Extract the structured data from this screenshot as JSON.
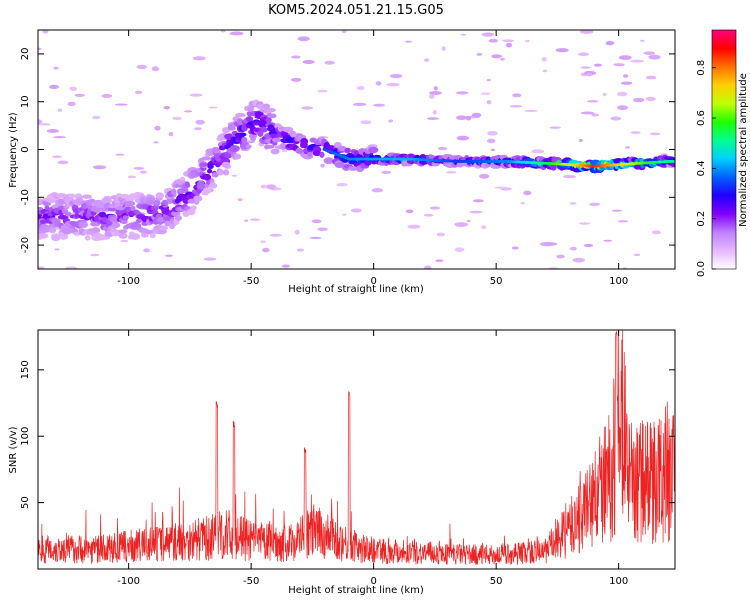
{
  "title": "KOM5.2024.051.21.15.G05",
  "chart_data": [
    {
      "type": "heatmap",
      "xlabel": "Height of straight line (km)",
      "ylabel": "Frequency (Hz)",
      "xlim": [
        -137,
        123
      ],
      "ylim": [
        -25,
        25
      ],
      "xticks": [
        -100,
        -50,
        0,
        50,
        100
      ],
      "yticks": [
        -20,
        -10,
        0,
        10,
        20
      ],
      "colorbar": {
        "label": "Normalized spectral amplitude",
        "range": [
          0,
          0.95
        ],
        "ticks": [
          0.0,
          0.2,
          0.4,
          0.6,
          0.8
        ],
        "tick_labels": [
          "0.0",
          "0.2",
          "0.4",
          "0.6",
          "0.8"
        ],
        "colormap": [
          "#ffffff",
          "#e6b8ff",
          "#c080ff",
          "#8000ff",
          "#2000ff",
          "#0060ff",
          "#00d0ff",
          "#00ff90",
          "#20ff00",
          "#c0ff00",
          "#ffd000",
          "#ff7000",
          "#ff0000",
          "#ff0080"
        ]
      },
      "ridge": [
        {
          "x": -95,
          "y": -14,
          "amp": 0.22
        },
        {
          "x": -85,
          "y": -13,
          "amp": 0.24
        },
        {
          "x": -75,
          "y": -9,
          "amp": 0.25
        },
        {
          "x": -65,
          "y": -3,
          "amp": 0.25
        },
        {
          "x": -55,
          "y": 3,
          "amp": 0.27
        },
        {
          "x": -47,
          "y": 6,
          "amp": 0.28
        },
        {
          "x": -40,
          "y": 3,
          "amp": 0.27
        },
        {
          "x": -30,
          "y": 1,
          "amp": 0.3
        },
        {
          "x": -20,
          "y": 0,
          "amp": 0.32
        },
        {
          "x": -10,
          "y": -2,
          "amp": 0.35
        },
        {
          "x": 0,
          "y": -2,
          "amp": 0.37
        },
        {
          "x": 15,
          "y": -2,
          "amp": 0.38
        },
        {
          "x": 35,
          "y": -2.5,
          "amp": 0.3
        },
        {
          "x": 55,
          "y": -2.5,
          "amp": 0.36
        },
        {
          "x": 75,
          "y": -3,
          "amp": 0.55
        },
        {
          "x": 90,
          "y": -3.5,
          "amp": 0.78
        },
        {
          "x": 105,
          "y": -3,
          "amp": 0.6
        },
        {
          "x": 120,
          "y": -2.5,
          "amp": 0.45
        }
      ]
    },
    {
      "type": "line",
      "xlabel": "Height of straight line (km)",
      "ylabel": "SNR (v/v)",
      "xlim": [
        -137,
        123
      ],
      "ylim": [
        0,
        180
      ],
      "xticks": [
        -100,
        -50,
        0,
        50,
        100
      ],
      "yticks": [
        50,
        100,
        150
      ],
      "color": "#ee2222",
      "envelope": [
        {
          "x": -137,
          "y": 20
        },
        {
          "x": -110,
          "y": 20
        },
        {
          "x": -90,
          "y": 25
        },
        {
          "x": -70,
          "y": 30
        },
        {
          "x": -60,
          "y": 35
        },
        {
          "x": -50,
          "y": 28
        },
        {
          "x": -35,
          "y": 25
        },
        {
          "x": -25,
          "y": 38
        },
        {
          "x": -15,
          "y": 30
        },
        {
          "x": -5,
          "y": 20
        },
        {
          "x": 10,
          "y": 18
        },
        {
          "x": 30,
          "y": 15
        },
        {
          "x": 50,
          "y": 14
        },
        {
          "x": 70,
          "y": 18
        },
        {
          "x": 80,
          "y": 40
        },
        {
          "x": 90,
          "y": 70
        },
        {
          "x": 97,
          "y": 95
        },
        {
          "x": 100,
          "y": 150
        },
        {
          "x": 103,
          "y": 130
        },
        {
          "x": 104,
          "y": 85
        },
        {
          "x": 115,
          "y": 90
        },
        {
          "x": 123,
          "y": 92
        }
      ],
      "peaks": [
        {
          "x": -64,
          "y": 127
        },
        {
          "x": -57,
          "y": 112
        },
        {
          "x": -28,
          "y": 92
        },
        {
          "x": -10,
          "y": 135
        },
        {
          "x": 99,
          "y": 180
        }
      ]
    }
  ]
}
